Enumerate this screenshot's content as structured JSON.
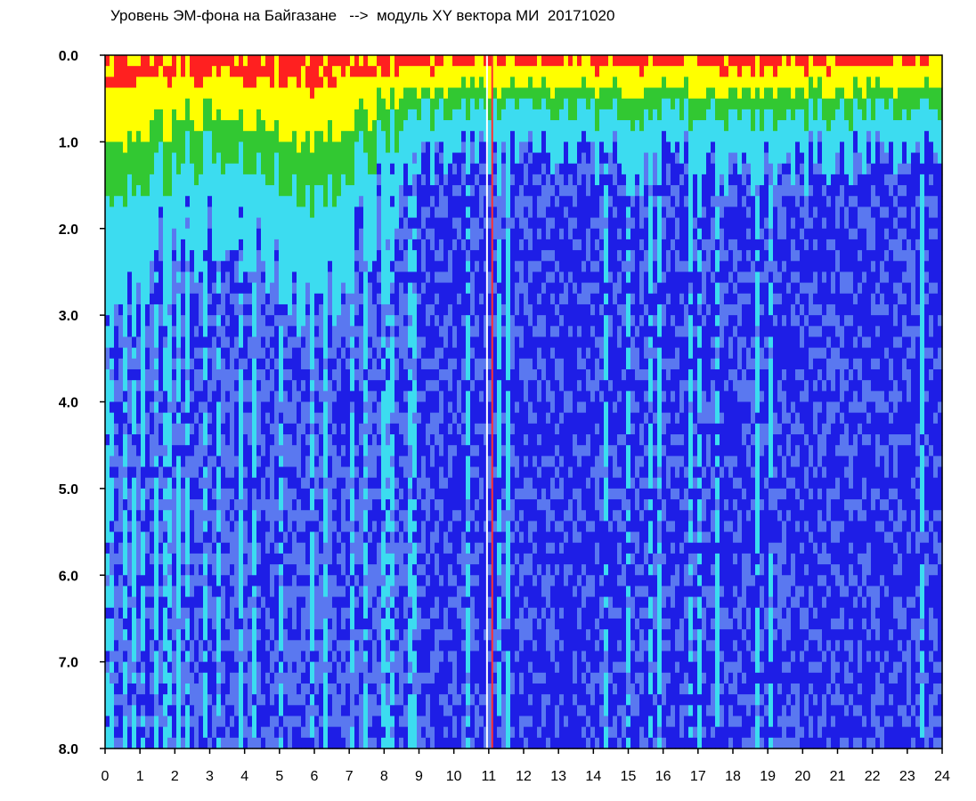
{
  "chart_data": {
    "type": "heatmap",
    "title": "Уровень ЭМ-фона на Байгазане   -->  модуль XY вектора МИ  20171020",
    "xlabel": "",
    "ylabel": "",
    "xlim": [
      0,
      24
    ],
    "ylim": [
      0.0,
      8.0
    ],
    "y_inverted": true,
    "grid": false,
    "x_ticks": [
      "0",
      "1",
      "2",
      "3",
      "4",
      "5",
      "6",
      "7",
      "8",
      "9",
      "10",
      "11",
      "12",
      "13",
      "14",
      "15",
      "16",
      "17",
      "18",
      "19",
      "20",
      "21",
      "22",
      "23",
      "24"
    ],
    "y_ticks": [
      "0.0",
      "1.0",
      "2.0",
      "3.0",
      "4.0",
      "5.0",
      "6.0",
      "7.0",
      "8.0"
    ],
    "colormap": [
      "#1e1ee6",
      "#5a78f0",
      "#3cdcf0",
      "#32c832",
      "#ffff00",
      "#ff2020"
    ],
    "intensity_profile": [
      {
        "hour": 0,
        "hot_band_to": 1.9
      },
      {
        "hour": 2,
        "hot_band_to": 1.6
      },
      {
        "hour": 4,
        "hot_band_to": 1.5
      },
      {
        "hour": 6,
        "hot_band_to": 2.0
      },
      {
        "hour": 8,
        "hot_band_to": 1.2
      },
      {
        "hour": 10,
        "hot_band_to": 0.7
      },
      {
        "hour": 12,
        "hot_band_to": 0.8
      },
      {
        "hour": 16,
        "hot_band_to": 0.9
      },
      {
        "hour": 20,
        "hot_band_to": 0.9
      },
      {
        "hour": 24,
        "hot_band_to": 0.7
      }
    ],
    "marker_lines": [
      {
        "hour": 10.95,
        "color": "#ffffff"
      },
      {
        "hour": 11.1,
        "color": "#ff3030"
      }
    ]
  }
}
